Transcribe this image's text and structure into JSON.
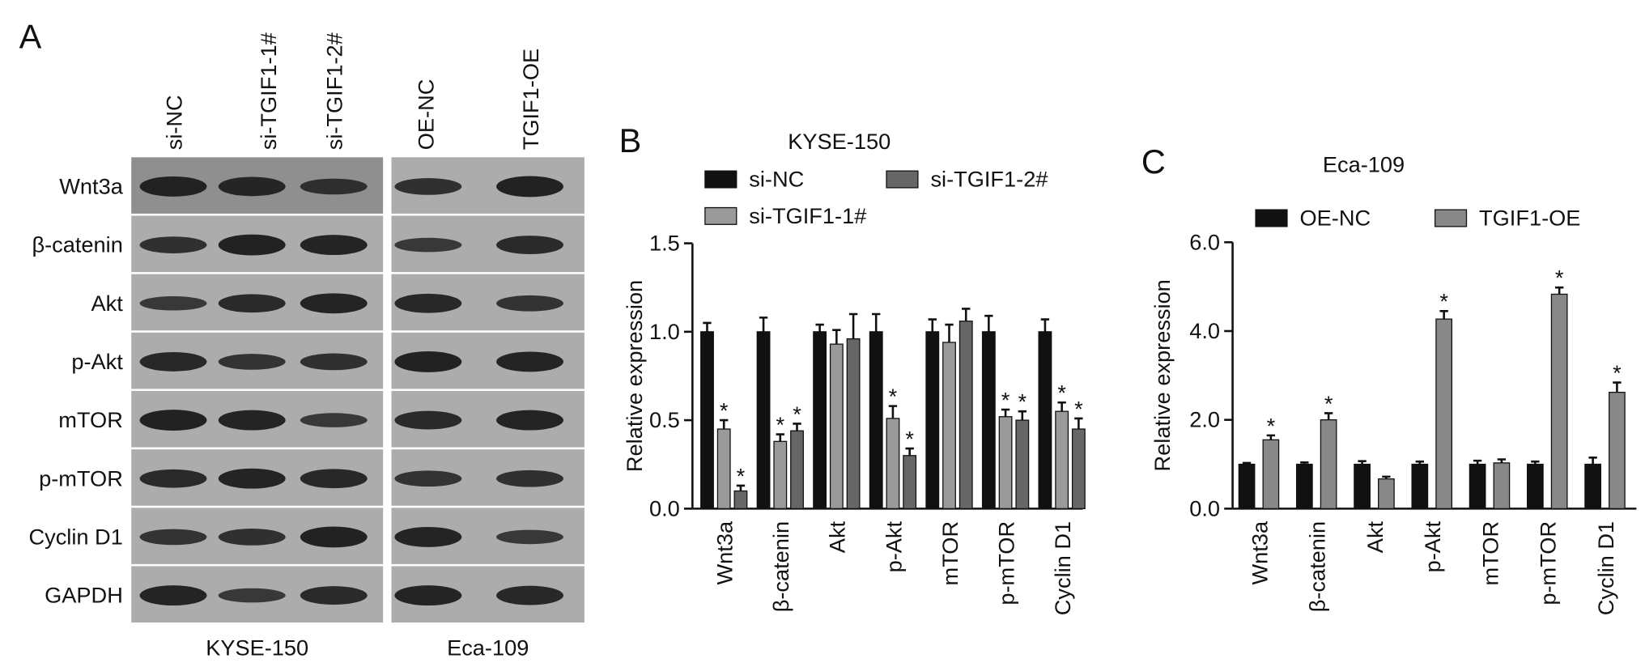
{
  "panel_labels": [
    "A",
    "B",
    "C"
  ],
  "blot": {
    "columns": [
      "si-NC",
      "si-TGIF1-1#",
      "si-TGIF1-2#",
      "OE-NC",
      "TGIF1-OE"
    ],
    "rows": [
      "Wnt3a",
      "β-catenin",
      "Akt",
      "p-Akt",
      "mTOR",
      "p-mTOR",
      "Cyclin D1",
      "GAPDH"
    ],
    "groups": [
      "KYSE-150",
      "Eca-109"
    ]
  },
  "chart_data": [
    {
      "type": "bar",
      "title": "KYSE-150",
      "ylabel": "Relative expression",
      "categories": [
        "Wnt3a",
        "β-catenin",
        "Akt",
        "p-Akt",
        "mTOR",
        "p-mTOR",
        "Cyclin D1"
      ],
      "series": [
        {
          "name": "si-NC",
          "color": "#111111",
          "values": [
            1.0,
            1.0,
            1.0,
            1.0,
            1.0,
            1.0,
            1.0
          ],
          "errors": [
            0.05,
            0.08,
            0.04,
            0.1,
            0.07,
            0.09,
            0.07
          ],
          "significance": [
            null,
            null,
            null,
            null,
            null,
            null,
            null
          ]
        },
        {
          "name": "si-TGIF1-1#",
          "color": "#9a9a9a",
          "values": [
            0.45,
            0.38,
            0.93,
            0.51,
            0.94,
            0.52,
            0.55
          ],
          "errors": [
            0.05,
            0.04,
            0.08,
            0.07,
            0.1,
            0.04,
            0.05
          ],
          "significance": [
            "*",
            "*",
            null,
            "*",
            null,
            "*",
            "*"
          ]
        },
        {
          "name": "si-TGIF1-2#",
          "color": "#666666",
          "values": [
            0.1,
            0.44,
            0.96,
            0.3,
            1.06,
            0.5,
            0.45
          ],
          "errors": [
            0.03,
            0.04,
            0.14,
            0.04,
            0.07,
            0.05,
            0.06
          ],
          "significance": [
            "*",
            "*",
            null,
            "*",
            null,
            "*",
            "*"
          ]
        }
      ],
      "ylim": [
        0,
        1.5
      ],
      "yticks": [
        {
          "value": 0,
          "label": "0.0"
        },
        {
          "value": 0.5,
          "label": "0.5"
        },
        {
          "value": 1,
          "label": "1.0"
        },
        {
          "value": 1.5,
          "label": "1.5"
        }
      ]
    },
    {
      "type": "bar",
      "title": "Eca-109",
      "ylabel": "Relative expression",
      "categories": [
        "Wnt3a",
        "β-catenin",
        "Akt",
        "p-Akt",
        "mTOR",
        "p-mTOR",
        "Cyclin D1"
      ],
      "series": [
        {
          "name": "OE-NC",
          "color": "#111111",
          "values": [
            1.0,
            1.0,
            1.0,
            1.0,
            1.0,
            1.0,
            1.0
          ],
          "errors": [
            0.03,
            0.04,
            0.07,
            0.06,
            0.08,
            0.06,
            0.15
          ],
          "significance": [
            null,
            null,
            null,
            null,
            null,
            null,
            null
          ]
        },
        {
          "name": "TGIF1-OE",
          "color": "#888888",
          "values": [
            1.55,
            2.0,
            0.67,
            4.27,
            1.03,
            4.83,
            2.62
          ],
          "errors": [
            0.1,
            0.15,
            0.05,
            0.18,
            0.08,
            0.15,
            0.22
          ],
          "significance": [
            "*",
            "*",
            null,
            "*",
            null,
            "*",
            "*"
          ]
        }
      ],
      "ylim": [
        0,
        6
      ],
      "yticks": [
        {
          "value": 0,
          "label": "0.0"
        },
        {
          "value": 2,
          "label": "2.0"
        },
        {
          "value": 4,
          "label": "4.0"
        },
        {
          "value": 6,
          "label": "6.0"
        }
      ]
    }
  ]
}
